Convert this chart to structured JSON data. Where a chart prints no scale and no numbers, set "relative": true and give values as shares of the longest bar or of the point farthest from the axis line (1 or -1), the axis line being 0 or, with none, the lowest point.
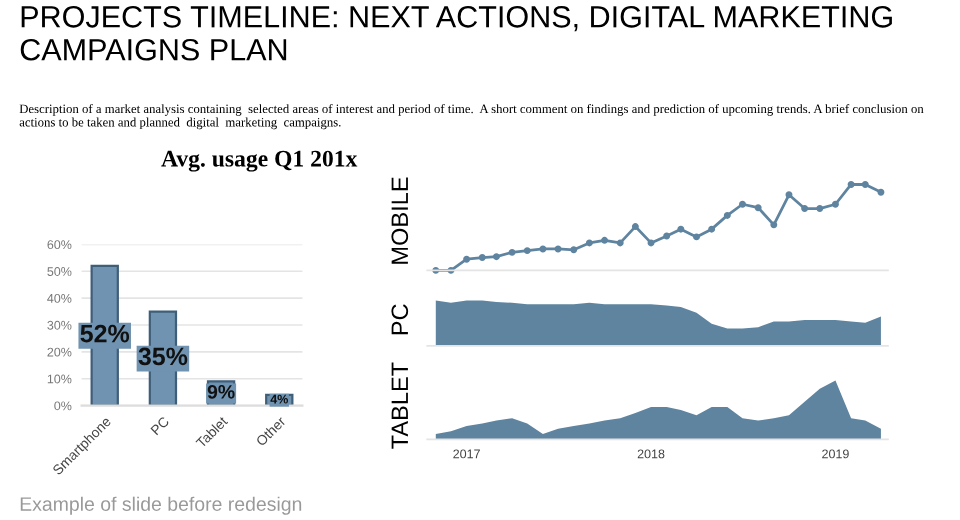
{
  "chart_data": [
    {
      "type": "other",
      "title": "PROJECTS TIMELINE: NEXT ACTIONS, DIGITAL MARKETING CAMPAIGNS PLAN",
      "subtitle": "Description of a market analysis containing  selected areas of interest and period of time.  A short comment on findings and prediction of upcoming trends. A brief conclusion on actions to be taken and planned  digital  marketing  campaigns.",
      "annotations": [
        "Example of slide before redesign"
      ]
    },
    {
      "type": "bar",
      "title": "Avg. usage Q1 201x",
      "categories": [
        "Smartphone",
        "PC",
        "Tablet",
        "Other"
      ],
      "values": [
        52,
        35,
        9,
        4
      ],
      "color": "#6f93b0",
      "value_labels": [
        "52%",
        "35%",
        "9%",
        "4%"
      ],
      "ylim": [
        0,
        60
      ],
      "yticks": [
        {
          "value": 0,
          "label": "0%"
        },
        {
          "value": 10,
          "label": "10%"
        },
        {
          "value": 20,
          "label": "20%"
        },
        {
          "value": 30,
          "label": "30%"
        },
        {
          "value": 40,
          "label": "40%"
        },
        {
          "value": 50,
          "label": "50%"
        },
        {
          "value": 60,
          "label": "60%"
        }
      ],
      "grid": "y"
    },
    {
      "type": "line",
      "ylabel": "MOBILE",
      "relative": true,
      "marker": "circle",
      "color": "#5f84a0",
      "tick_labels": false,
      "xlim": [
        "2016-10-15",
        "2019-04-15"
      ],
      "x": [
        "2016-11",
        "2016-12",
        "2017-01",
        "2017-02",
        "2017-03",
        "2017-04",
        "2017-05",
        "2017-06",
        "2017-07",
        "2017-08",
        "2017-09",
        "2017-10",
        "2017-11",
        "2017-12",
        "2018-01",
        "2018-02",
        "2018-03",
        "2018-04",
        "2018-05",
        "2018-06",
        "2018-07",
        "2018-08",
        "2018-09",
        "2018-10",
        "2018-11",
        "2018-12",
        "2019-01",
        "2019-02",
        "2019-03",
        "2019-04"
      ],
      "values": [
        0,
        0,
        0.13,
        0.15,
        0.16,
        0.21,
        0.23,
        0.25,
        0.25,
        0.24,
        0.32,
        0.35,
        0.32,
        0.51,
        0.32,
        0.4,
        0.48,
        0.39,
        0.48,
        0.64,
        0.77,
        0.73,
        0.53,
        0.88,
        0.72,
        0.72,
        0.77,
        1,
        1,
        0.91
      ]
    },
    {
      "type": "area",
      "ylabel": "PC",
      "relative": true,
      "color": "#5f84a0",
      "xlim": [
        "2016-10-15",
        "2019-04-15"
      ],
      "tick_labels": false,
      "x": [
        "2016-11",
        "2016-12",
        "2017-01",
        "2017-02",
        "2017-03",
        "2017-04",
        "2017-05",
        "2017-06",
        "2017-07",
        "2017-08",
        "2017-09",
        "2017-10",
        "2017-11",
        "2017-12",
        "2018-01",
        "2018-02",
        "2018-03",
        "2018-04",
        "2018-05",
        "2018-06",
        "2018-07",
        "2018-08",
        "2018-09",
        "2018-10",
        "2018-11",
        "2018-12",
        "2019-01",
        "2019-02",
        "2019-03",
        "2019-04"
      ],
      "values": [
        1.0,
        0.95,
        1.0,
        1.0,
        0.97,
        0.95,
        0.92,
        0.92,
        0.92,
        0.92,
        0.95,
        0.92,
        0.92,
        0.92,
        0.92,
        0.89,
        0.86,
        0.73,
        0.49,
        0.38,
        0.38,
        0.41,
        0.54,
        0.54,
        0.57,
        0.57,
        0.57,
        0.54,
        0.51,
        0.65
      ]
    },
    {
      "type": "area",
      "ylabel": "TABLET",
      "relative": true,
      "color": "#5f84a0",
      "xlim": [
        "2016-10-15",
        "2019-04-15"
      ],
      "tick_labels": "x",
      "xticks": [
        {
          "value": "2017-01-01",
          "label": "2017"
        },
        {
          "value": "2018-01-01",
          "label": "2018"
        },
        {
          "value": "2019-01-01",
          "label": "2019"
        }
      ],
      "x": [
        "2016-11",
        "2016-12",
        "2017-01",
        "2017-02",
        "2017-03",
        "2017-04",
        "2017-05",
        "2017-06",
        "2017-07",
        "2017-08",
        "2017-09",
        "2017-10",
        "2017-11",
        "2017-12",
        "2018-01",
        "2018-02",
        "2018-03",
        "2018-04",
        "2018-05",
        "2018-06",
        "2018-07",
        "2018-08",
        "2018-09",
        "2018-10",
        "2018-11",
        "2018-12",
        "2019-01",
        "2019-02",
        "2019-03",
        "2019-04"
      ],
      "values": [
        0.09,
        0.14,
        0.23,
        0.27,
        0.32,
        0.36,
        0.27,
        0.09,
        0.18,
        0.23,
        0.27,
        0.32,
        0.36,
        0.45,
        0.55,
        0.55,
        0.5,
        0.41,
        0.55,
        0.55,
        0.36,
        0.32,
        0.36,
        0.41,
        0.64,
        0.86,
        1,
        0.36,
        0.32,
        0.18
      ]
    }
  ]
}
